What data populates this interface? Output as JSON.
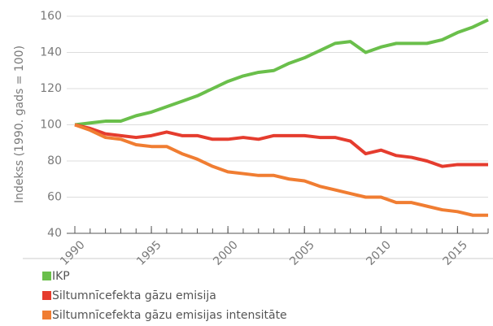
{
  "chart_data": {
    "type": "line",
    "y_label": "Indekss (1990. gads = 100)",
    "x": [
      1990,
      1991,
      1992,
      1993,
      1994,
      1995,
      1996,
      1997,
      1998,
      1999,
      2000,
      2001,
      2002,
      2003,
      2004,
      2005,
      2006,
      2007,
      2008,
      2009,
      2010,
      2011,
      2012,
      2013,
      2014,
      2015,
      2016,
      2017
    ],
    "series": [
      {
        "name": "IKP",
        "color": "#6abf4b",
        "values": [
          100,
          101,
          102,
          102,
          105,
          107,
          110,
          113,
          116,
          120,
          124,
          127,
          129,
          130,
          134,
          137,
          141,
          145,
          146,
          140,
          143,
          145,
          145,
          145,
          147,
          151,
          154,
          158
        ]
      },
      {
        "name": "Siltumnīcefekta gāzu emisija",
        "color": "#e53c2e",
        "values": [
          100,
          98,
          95,
          94,
          93,
          94,
          96,
          94,
          94,
          92,
          92,
          93,
          92,
          94,
          94,
          94,
          93,
          93,
          91,
          84,
          86,
          83,
          82,
          80,
          77,
          78,
          78,
          78
        ]
      },
      {
        "name": "Siltumnīcefekta gāzu emisijas intensitāte",
        "color": "#f07d32",
        "values": [
          100,
          97,
          93,
          92,
          89,
          88,
          88,
          84,
          81,
          77,
          74,
          73,
          72,
          72,
          70,
          69,
          66,
          64,
          62,
          60,
          60,
          57,
          57,
          55,
          53,
          52,
          50,
          50
        ]
      }
    ],
    "xlim": [
      1990,
      2017
    ],
    "xticks": [
      1990,
      1995,
      2000,
      2005,
      2010,
      2015
    ],
    "ylim": [
      40,
      160
    ],
    "yticks": [
      40,
      60,
      80,
      100,
      120,
      140,
      160
    ],
    "grid": true
  }
}
